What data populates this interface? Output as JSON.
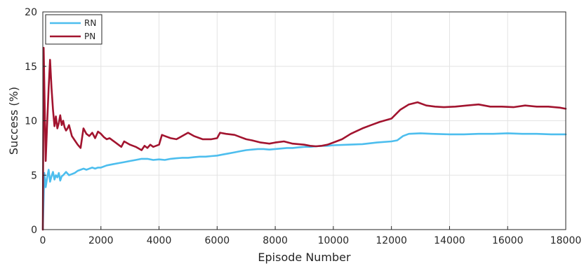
{
  "chart_data": {
    "type": "line",
    "xlabel": "Episode Number",
    "ylabel": "Success (%)",
    "xlim": [
      0,
      18000
    ],
    "ylim": [
      0,
      20
    ],
    "x_ticks": [
      0,
      2000,
      4000,
      6000,
      8000,
      10000,
      12000,
      14000,
      16000,
      18000
    ],
    "y_ticks": [
      0,
      5,
      10,
      15,
      20
    ],
    "x_tick_labels": [
      "0",
      "2000",
      "4000",
      "6000",
      "8000",
      "10000",
      "12000",
      "14000",
      "16000",
      "18000"
    ],
    "y_tick_labels": [
      "0",
      "5",
      "10",
      "15",
      "20"
    ],
    "grid": true,
    "legend_position": "top-left",
    "series": [
      {
        "name": "RN",
        "color": "#4DBEEE",
        "x": [
          0,
          50,
          100,
          150,
          200,
          250,
          300,
          350,
          400,
          450,
          500,
          550,
          600,
          650,
          700,
          800,
          900,
          1000,
          1100,
          1200,
          1300,
          1400,
          1500,
          1600,
          1700,
          1800,
          1900,
          2000,
          2200,
          2400,
          2600,
          2800,
          3000,
          3200,
          3400,
          3600,
          3800,
          4000,
          4200,
          4400,
          4600,
          4800,
          5000,
          5200,
          5400,
          5600,
          5800,
          6000,
          6200,
          6400,
          6600,
          6800,
          7000,
          7200,
          7400,
          7600,
          7800,
          8000,
          8200,
          8400,
          8600,
          8800,
          9000,
          9200,
          9400,
          9600,
          9800,
          10000,
          10500,
          11000,
          11500,
          12000,
          12200,
          12400,
          12600,
          13000,
          13400,
          14000,
          14500,
          15000,
          15500,
          16000,
          16500,
          17000,
          17500,
          18000
        ],
        "values": [
          0,
          5.2,
          3.9,
          4.8,
          5.5,
          4.4,
          4.9,
          5.3,
          4.6,
          5.0,
          4.8,
          5.2,
          4.5,
          4.9,
          5.0,
          5.3,
          5.0,
          5.1,
          5.2,
          5.4,
          5.5,
          5.6,
          5.5,
          5.6,
          5.7,
          5.6,
          5.7,
          5.7,
          5.9,
          6.0,
          6.1,
          6.2,
          6.3,
          6.4,
          6.5,
          6.5,
          6.4,
          6.45,
          6.4,
          6.5,
          6.55,
          6.6,
          6.6,
          6.65,
          6.7,
          6.7,
          6.75,
          6.8,
          6.9,
          7.0,
          7.1,
          7.2,
          7.3,
          7.35,
          7.4,
          7.4,
          7.35,
          7.4,
          7.45,
          7.5,
          7.5,
          7.55,
          7.6,
          7.6,
          7.65,
          7.7,
          7.7,
          7.75,
          7.8,
          7.85,
          8.0,
          8.1,
          8.2,
          8.6,
          8.8,
          8.85,
          8.8,
          8.75,
          8.75,
          8.8,
          8.8,
          8.85,
          8.8,
          8.8,
          8.75,
          8.75
        ]
      },
      {
        "name": "PN",
        "color": "#A2142F",
        "x": [
          0,
          30,
          60,
          100,
          150,
          200,
          250,
          300,
          350,
          400,
          450,
          500,
          550,
          600,
          650,
          700,
          750,
          800,
          850,
          900,
          1000,
          1100,
          1200,
          1300,
          1400,
          1500,
          1600,
          1700,
          1800,
          1900,
          2000,
          2100,
          2200,
          2300,
          2500,
          2700,
          2800,
          3000,
          3200,
          3400,
          3500,
          3600,
          3700,
          3800,
          4000,
          4100,
          4200,
          4400,
          4600,
          4800,
          5000,
          5200,
          5500,
          5800,
          6000,
          6100,
          6300,
          6600,
          6800,
          7000,
          7200,
          7500,
          7800,
          8000,
          8300,
          8600,
          8800,
          9000,
          9200,
          9400,
          9600,
          9800,
          10000,
          10300,
          10600,
          11000,
          11300,
          11600,
          12000,
          12300,
          12600,
          12900,
          13200,
          13500,
          13800,
          14200,
          14600,
          15000,
          15400,
          15800,
          16200,
          16600,
          17000,
          17400,
          17800,
          18000
        ],
        "values": [
          0,
          16.7,
          12.0,
          6.3,
          9.8,
          13.0,
          15.6,
          13.0,
          11.0,
          9.5,
          10.4,
          9.3,
          9.8,
          10.5,
          9.6,
          10.0,
          9.4,
          9.1,
          9.3,
          9.6,
          8.6,
          8.2,
          7.8,
          7.5,
          9.3,
          8.8,
          8.6,
          8.9,
          8.4,
          9.0,
          8.8,
          8.5,
          8.3,
          8.4,
          8.0,
          7.6,
          8.1,
          7.8,
          7.6,
          7.3,
          7.7,
          7.5,
          7.8,
          7.6,
          7.8,
          8.7,
          8.6,
          8.4,
          8.3,
          8.6,
          8.9,
          8.6,
          8.3,
          8.3,
          8.4,
          8.9,
          8.8,
          8.7,
          8.5,
          8.3,
          8.2,
          8.0,
          7.9,
          8.0,
          8.1,
          7.9,
          7.85,
          7.8,
          7.7,
          7.65,
          7.7,
          7.8,
          8.0,
          8.3,
          8.8,
          9.3,
          9.6,
          9.9,
          10.2,
          11.0,
          11.5,
          11.7,
          11.4,
          11.3,
          11.25,
          11.3,
          11.4,
          11.5,
          11.3,
          11.3,
          11.25,
          11.4,
          11.3,
          11.3,
          11.2,
          11.1
        ]
      }
    ]
  }
}
